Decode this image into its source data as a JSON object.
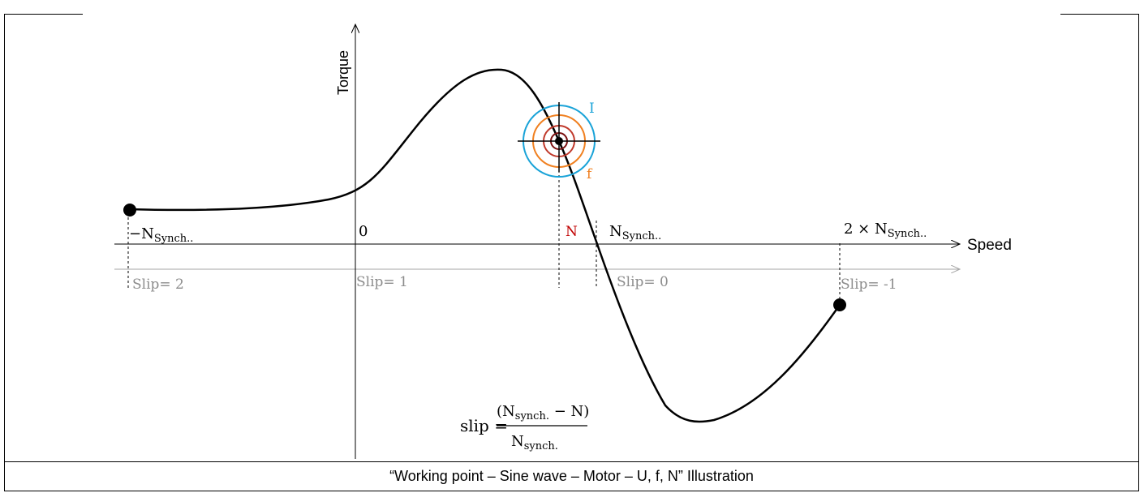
{
  "axes": {
    "y_label": "Torque",
    "x_label": "Speed"
  },
  "speed_labels": {
    "neg_sync_prefix": "−N",
    "neg_sync_sub": "Synch..",
    "zero": "0",
    "n": "N",
    "sync_main": "N",
    "sync_sub": "Synch..",
    "two_sync_prefix": "2 × N",
    "two_sync_sub": "Synch.."
  },
  "slip_labels": {
    "slip_2": "Slip= 2",
    "slip_1": "Slip= 1",
    "slip_0": "Slip= 0",
    "slip_neg1": "Slip= -1"
  },
  "circle_labels": {
    "current": "I",
    "frequency": "f"
  },
  "formula": {
    "lhs": "slip =",
    "num_open": "(N",
    "num_sub": "synch.",
    "num_rest": " − N)",
    "den_main": "N",
    "den_sub": "synch."
  },
  "caption": "“Working point – Sine wave – Motor – U, f, N” Illustration",
  "colors": {
    "axis": "#000000",
    "slip_axis": "#a6a6a6",
    "slip_text": "#8c8c8c",
    "current_circle": "#1aa3d8",
    "frequency_circle": "#f08020",
    "voltage_circle": "#c0392b",
    "inner_circle": "#7b1010",
    "n_label": "#c00000"
  }
}
